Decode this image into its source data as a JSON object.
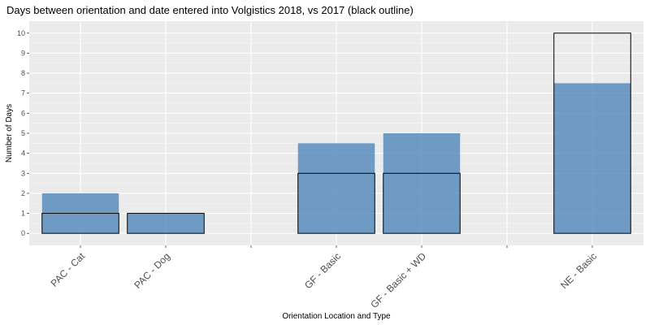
{
  "chart_data": {
    "type": "bar",
    "title": "Days between orientation and date entered into Volgistics 2018, vs 2017 (black outline)",
    "xlabel": "Orientation Location and Type",
    "ylabel": "Number of Days",
    "ylim": [
      -0.6,
      10.6
    ],
    "y_ticks": [
      0,
      1,
      2,
      3,
      4,
      5,
      6,
      7,
      8,
      9,
      10
    ],
    "grid": true,
    "x_slots": [
      "PAC - Cat",
      "PAC - Dog",
      "",
      "GF - Basic",
      "GF - Basic + WD",
      "",
      "NE - Basic"
    ],
    "categories": [
      "PAC - Cat",
      "PAC - Dog",
      "GF - Basic",
      "GF - Basic + WD",
      "NE - Basic"
    ],
    "series": [
      {
        "values": [
          2,
          1,
          4.5,
          5,
          7.5
        ],
        "color": "#4F86BA",
        "style": "filled"
      },
      {
        "values": [
          1,
          1,
          3,
          3,
          10
        ],
        "color": "#000000",
        "style": "outline"
      }
    ],
    "colors": {
      "panel": "#EBEBEB",
      "grid_major": "#FFFFFF",
      "bar_fill": "#4F86BA"
    }
  }
}
